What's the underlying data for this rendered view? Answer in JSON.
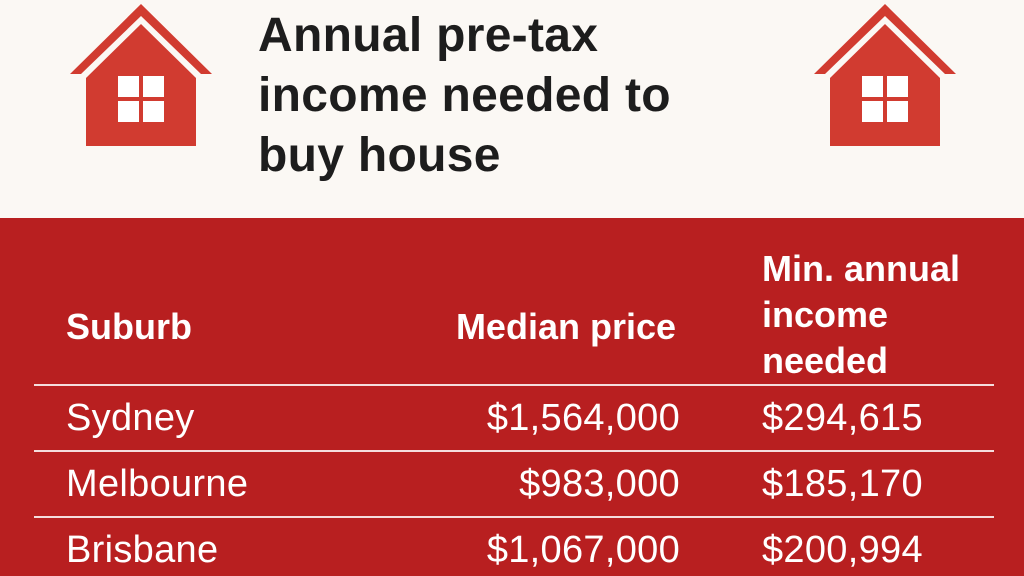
{
  "header": {
    "title": "Annual pre-tax\nincome needed to\nbuy house",
    "icons": [
      "house-icon",
      "house-icon"
    ]
  },
  "colors": {
    "accent": "#b81f20",
    "icon": "#d13b30",
    "background": "#fbf8f4",
    "title_text": "#1d1d1d"
  },
  "table": {
    "headers": {
      "suburb": "Suburb",
      "price": "Median price",
      "income": "Min. annual\nincome\nneeded"
    },
    "rows": [
      {
        "suburb": "Sydney",
        "price": "$1,564,000",
        "income": "$294,615"
      },
      {
        "suburb": "Melbourne",
        "price": "$983,000",
        "income": "$185,170"
      },
      {
        "suburb": "Brisbane",
        "price": "$1,067,000",
        "income": "$200,994"
      }
    ]
  }
}
